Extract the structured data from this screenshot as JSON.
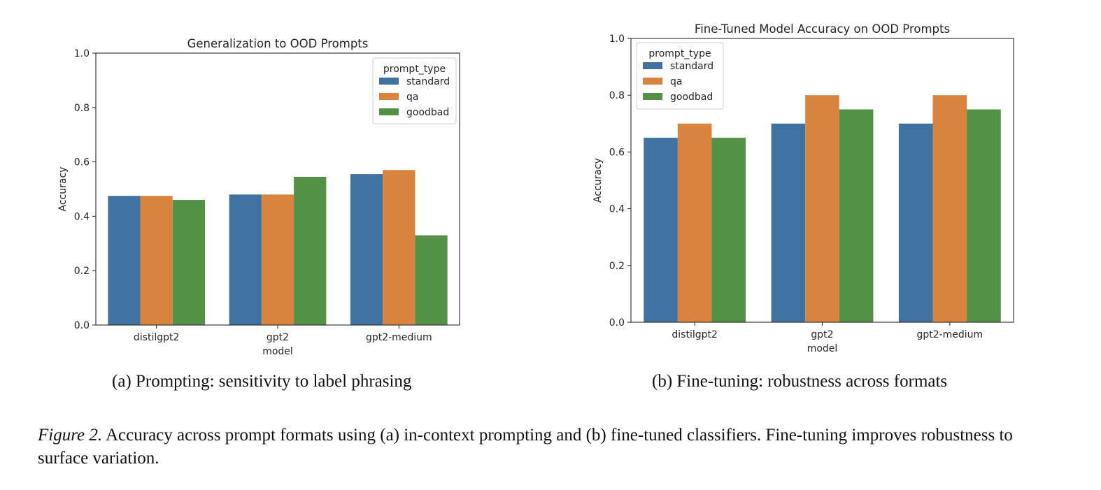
{
  "chart_data": [
    {
      "type": "bar",
      "title": "Generalization to OOD Prompts",
      "xlabel": "model",
      "ylabel": "Accuracy",
      "ylim": [
        0,
        1.0
      ],
      "yticks": [
        "0.0",
        "0.2",
        "0.4",
        "0.6",
        "0.8",
        "1.0"
      ],
      "categories": [
        "distilgpt2",
        "gpt2",
        "gpt2-medium"
      ],
      "legend_title": "prompt_type",
      "legend_position": "top-right",
      "series": [
        {
          "name": "standard",
          "color": "#3f72a0",
          "values": [
            0.475,
            0.48,
            0.555
          ]
        },
        {
          "name": "qa",
          "color": "#d8843f",
          "values": [
            0.475,
            0.48,
            0.57
          ]
        },
        {
          "name": "goodbad",
          "color": "#539146",
          "values": [
            0.46,
            0.545,
            0.33
          ]
        }
      ]
    },
    {
      "type": "bar",
      "title": "Fine-Tuned Model Accuracy on OOD Prompts",
      "xlabel": "model",
      "ylabel": "Accuracy",
      "ylim": [
        0,
        1.0
      ],
      "yticks": [
        "0.0",
        "0.2",
        "0.4",
        "0.6",
        "0.8",
        "1.0"
      ],
      "categories": [
        "distilgpt2",
        "gpt2",
        "gpt2-medium"
      ],
      "legend_title": "prompt_type",
      "legend_position": "top-left",
      "series": [
        {
          "name": "standard",
          "color": "#3f72a0",
          "values": [
            0.65,
            0.7,
            0.7
          ]
        },
        {
          "name": "qa",
          "color": "#d8843f",
          "values": [
            0.7,
            0.8,
            0.8
          ]
        },
        {
          "name": "goodbad",
          "color": "#539146",
          "values": [
            0.65,
            0.75,
            0.75
          ]
        }
      ]
    }
  ],
  "captions": {
    "a": "(a)  Prompting: sensitivity to label phrasing",
    "b": "(b)  Fine-tuning: robustness across formats",
    "figure_label": "Figure 2.",
    "figure_text": " Accuracy across prompt formats using (a) in-context prompting and (b) fine-tuned classifiers. Fine-tuning improves robustness to surface variation."
  }
}
